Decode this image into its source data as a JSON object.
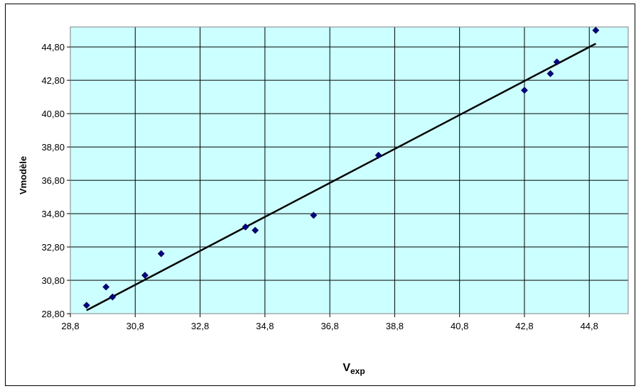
{
  "chart_data": {
    "type": "scatter",
    "xlabel": "V",
    "xlabel_sub": "exp",
    "ylabel": "Vmodèle",
    "xlim": [
      28.8,
      46.0
    ],
    "ylim": [
      28.8,
      46.0
    ],
    "x_ticks": [
      28.8,
      30.8,
      32.8,
      34.8,
      36.8,
      38.8,
      40.8,
      42.8,
      44.8
    ],
    "x_tick_labels": [
      "28,8",
      "30,8",
      "32,8",
      "34,8",
      "36,8",
      "38,8",
      "40,8",
      "42,8",
      "44,8"
    ],
    "y_ticks": [
      28.8,
      30.8,
      32.8,
      34.8,
      36.8,
      38.8,
      40.8,
      42.8,
      44.8
    ],
    "y_tick_labels": [
      "28,80",
      "30,80",
      "32,80",
      "34,80",
      "36,80",
      "38,80",
      "40,80",
      "42,80",
      "44,80"
    ],
    "grid": true,
    "plot_background": "#ccffff",
    "marker_color": "#000080",
    "line_color": "#000000",
    "points": [
      {
        "x": 29.3,
        "y": 29.3
      },
      {
        "x": 29.9,
        "y": 30.4
      },
      {
        "x": 30.1,
        "y": 29.8
      },
      {
        "x": 31.1,
        "y": 31.1
      },
      {
        "x": 31.6,
        "y": 32.4
      },
      {
        "x": 34.2,
        "y": 34.0
      },
      {
        "x": 34.5,
        "y": 33.8
      },
      {
        "x": 36.3,
        "y": 34.7
      },
      {
        "x": 38.3,
        "y": 38.3
      },
      {
        "x": 42.8,
        "y": 42.2
      },
      {
        "x": 43.6,
        "y": 43.2
      },
      {
        "x": 43.8,
        "y": 43.9
      },
      {
        "x": 45.0,
        "y": 45.8
      }
    ],
    "trendline": {
      "x": [
        29.3,
        45.0
      ],
      "y": [
        29.0,
        45.0
      ]
    }
  }
}
